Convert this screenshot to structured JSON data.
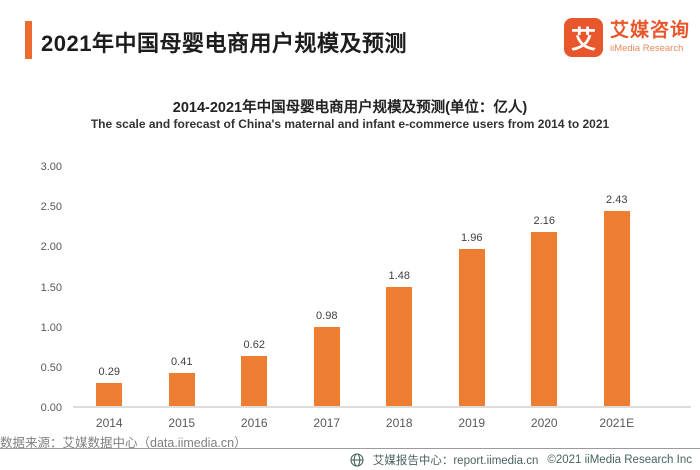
{
  "header": {
    "title": "2021年中国母婴电商用户规模及预测",
    "logo": {
      "symbol": "艾",
      "name_cn": "艾媒咨询",
      "name_en": "iiMedia Research"
    }
  },
  "chart_data": {
    "type": "bar",
    "title": "2014-2021年中国母婴电商用户规模及预测(单位：亿人)",
    "subtitle_en": "The scale and forecast of China's maternal and infant e-commerce users from 2014 to 2021",
    "categories": [
      "2014",
      "2015",
      "2016",
      "2017",
      "2018",
      "2019",
      "2020",
      "2021E"
    ],
    "values": [
      0.29,
      0.41,
      0.62,
      0.98,
      1.48,
      1.96,
      2.16,
      2.43
    ],
    "ylim": [
      0,
      3
    ],
    "yticks": [
      "3.00",
      "2.50",
      "2.00",
      "1.50",
      "1.00",
      "0.50",
      "0.00"
    ],
    "bar_color": "#ED7D31",
    "grid": false,
    "legend": false,
    "xlabel": "",
    "ylabel": ""
  },
  "footer": {
    "source": "数据来源：艾媒数据中心（data.iimedia.cn）",
    "report_center": "艾媒报告中心：report.iimedia.cn",
    "copyright": "©2021  iiMedia Research  Inc"
  },
  "icons": {
    "footer_badge": "globe",
    "logo_mark": "iimedia-mark"
  },
  "colors": {
    "bar": "#ED7D31",
    "accent_bar": "#ED6C2F",
    "logo_orange": "#E8572C",
    "footer_text": "#4A6360",
    "axis_text": "#595959",
    "source_text": "#808080"
  }
}
